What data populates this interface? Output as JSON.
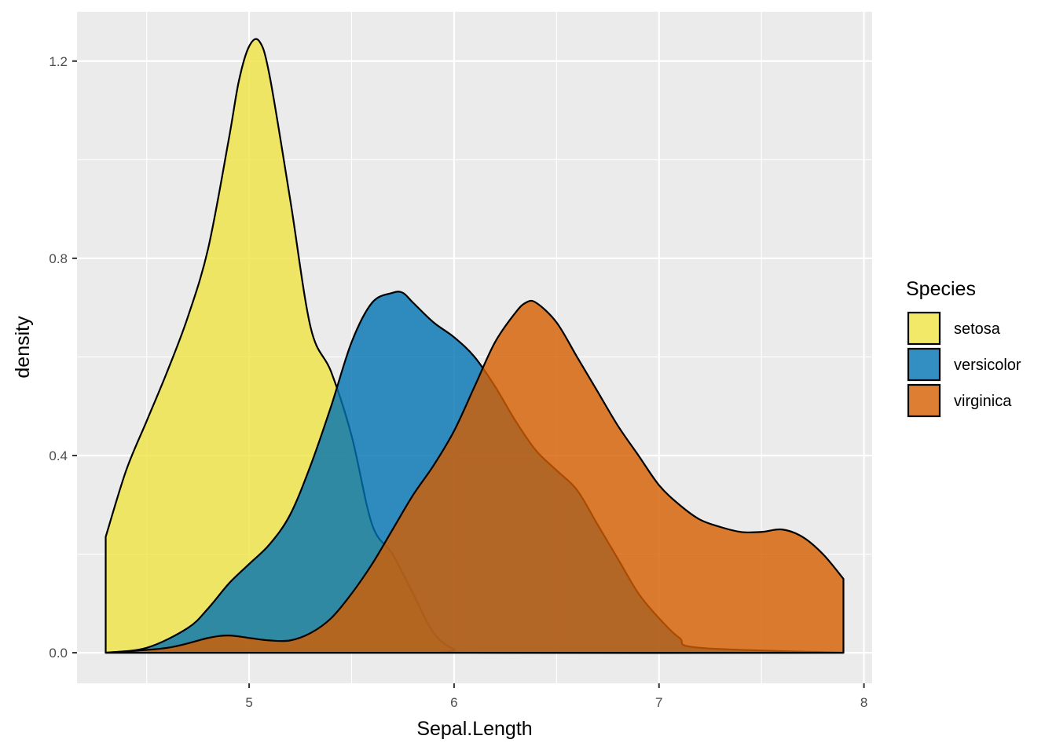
{
  "chart_data": {
    "type": "area",
    "subtype": "density",
    "xlabel": "Sepal.Length",
    "ylabel": "density",
    "xlim": [
      4.16,
      8.04
    ],
    "ylim": [
      -0.062,
      1.3
    ],
    "x_ticks": [
      5,
      6,
      7,
      8
    ],
    "x_tick_labels": [
      "5",
      "6",
      "7",
      "8"
    ],
    "y_ticks": [
      0.0,
      0.4,
      0.8,
      1.2
    ],
    "y_tick_labels": [
      "0.0",
      "0.4",
      "0.8",
      "1.2"
    ],
    "grid": true,
    "legend": {
      "title": "Species",
      "position": "right"
    },
    "series": [
      {
        "name": "setosa",
        "color": "#f0e442",
        "x": [
          4.3,
          4.4,
          4.5,
          4.6,
          4.7,
          4.8,
          4.9,
          4.95,
          5.0,
          5.05,
          5.1,
          5.2,
          5.3,
          5.4,
          5.5,
          5.6,
          5.7,
          5.8,
          5.9,
          6.0,
          6.1,
          7.9
        ],
        "y": [
          0.235,
          0.37,
          0.47,
          0.57,
          0.68,
          0.82,
          1.04,
          1.16,
          1.23,
          1.24,
          1.17,
          0.92,
          0.66,
          0.57,
          0.44,
          0.26,
          0.2,
          0.12,
          0.04,
          0.007,
          0.0,
          0.0
        ]
      },
      {
        "name": "versicolor",
        "color": "#0072b2",
        "x": [
          4.3,
          4.5,
          4.7,
          4.8,
          4.9,
          5.0,
          5.1,
          5.2,
          5.3,
          5.4,
          5.5,
          5.6,
          5.7,
          5.75,
          5.8,
          5.9,
          6.0,
          6.1,
          6.2,
          6.3,
          6.4,
          6.5,
          6.6,
          6.7,
          6.8,
          6.9,
          7.0,
          7.1,
          7.2,
          7.9
        ],
        "y": [
          0.0,
          0.01,
          0.05,
          0.09,
          0.14,
          0.18,
          0.22,
          0.28,
          0.38,
          0.5,
          0.63,
          0.71,
          0.73,
          0.73,
          0.71,
          0.67,
          0.64,
          0.6,
          0.54,
          0.47,
          0.41,
          0.37,
          0.33,
          0.26,
          0.19,
          0.12,
          0.07,
          0.03,
          0.01,
          0.0
        ]
      },
      {
        "name": "virginica",
        "color": "#d55e00",
        "x": [
          4.3,
          4.6,
          4.8,
          4.9,
          5.0,
          5.1,
          5.2,
          5.3,
          5.4,
          5.5,
          5.6,
          5.7,
          5.8,
          5.9,
          6.0,
          6.1,
          6.2,
          6.3,
          6.35,
          6.4,
          6.5,
          6.6,
          6.7,
          6.8,
          6.9,
          7.0,
          7.1,
          7.2,
          7.3,
          7.4,
          7.5,
          7.6,
          7.7,
          7.8,
          7.9
        ],
        "y": [
          0.0,
          0.01,
          0.03,
          0.035,
          0.03,
          0.025,
          0.025,
          0.04,
          0.07,
          0.12,
          0.18,
          0.25,
          0.32,
          0.38,
          0.45,
          0.54,
          0.63,
          0.69,
          0.71,
          0.71,
          0.67,
          0.6,
          0.53,
          0.46,
          0.4,
          0.34,
          0.3,
          0.27,
          0.255,
          0.245,
          0.245,
          0.25,
          0.235,
          0.2,
          0.15
        ]
      }
    ]
  }
}
